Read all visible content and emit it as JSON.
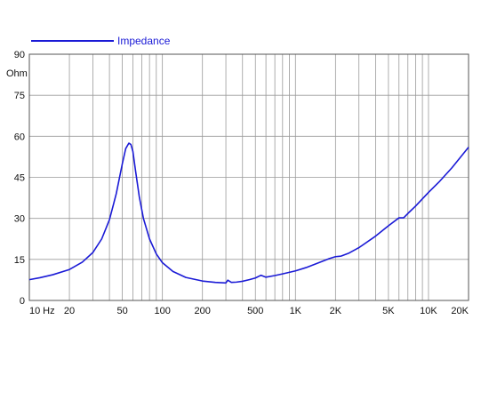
{
  "chart_data": {
    "type": "line",
    "x_scale": "log",
    "xlim": [
      10,
      20000
    ],
    "ylim": [
      0,
      90
    ],
    "ylabel": "Ohm",
    "x_unit_label": "Hz",
    "grid": true,
    "legend_position": "top-left",
    "x_ticks": [
      {
        "value": 10,
        "label": "10"
      },
      {
        "value": 20,
        "label": "20"
      },
      {
        "value": 50,
        "label": "50"
      },
      {
        "value": 100,
        "label": "100"
      },
      {
        "value": 200,
        "label": "200"
      },
      {
        "value": 500,
        "label": "500"
      },
      {
        "value": 1000,
        "label": "1K"
      },
      {
        "value": 2000,
        "label": "2K"
      },
      {
        "value": 5000,
        "label": "5K"
      },
      {
        "value": 10000,
        "label": "10K"
      },
      {
        "value": 20000,
        "label": "20K"
      }
    ],
    "y_ticks": [
      {
        "value": 0,
        "label": "0"
      },
      {
        "value": 15,
        "label": "15"
      },
      {
        "value": 30,
        "label": "30"
      },
      {
        "value": 45,
        "label": "45"
      },
      {
        "value": 60,
        "label": "60"
      },
      {
        "value": 75,
        "label": "75"
      },
      {
        "value": 90,
        "label": "90"
      }
    ],
    "series": [
      {
        "name": "Impedance",
        "color": "#1a1ad6",
        "x": [
          10,
          12,
          15,
          20,
          25,
          30,
          35,
          40,
          45,
          50,
          53,
          56,
          58,
          60,
          63,
          67,
          72,
          80,
          90,
          100,
          120,
          150,
          200,
          250,
          300,
          310,
          330,
          360,
          400,
          450,
          500,
          550,
          600,
          700,
          800,
          1000,
          1200,
          1500,
          1800,
          2000,
          2200,
          2500,
          3000,
          4000,
          5000,
          6000,
          6500,
          7000,
          8000,
          10000,
          12000,
          15000,
          20000
        ],
        "y": [
          7.6,
          8.3,
          9.4,
          11.3,
          14,
          17.5,
          22.5,
          29.5,
          39,
          50,
          55.5,
          57.5,
          57,
          54.5,
          47,
          38,
          30,
          22.5,
          17,
          13.8,
          10.6,
          8.4,
          7.1,
          6.6,
          6.4,
          7.4,
          6.6,
          6.7,
          7,
          7.6,
          8.2,
          9.2,
          8.5,
          9.1,
          9.7,
          10.8,
          12,
          13.8,
          15.3,
          16,
          16.2,
          17.2,
          19.3,
          23.5,
          27.3,
          30.2,
          30.2,
          31.8,
          34.5,
          39.5,
          43.3,
          48.5,
          56
        ]
      }
    ]
  }
}
